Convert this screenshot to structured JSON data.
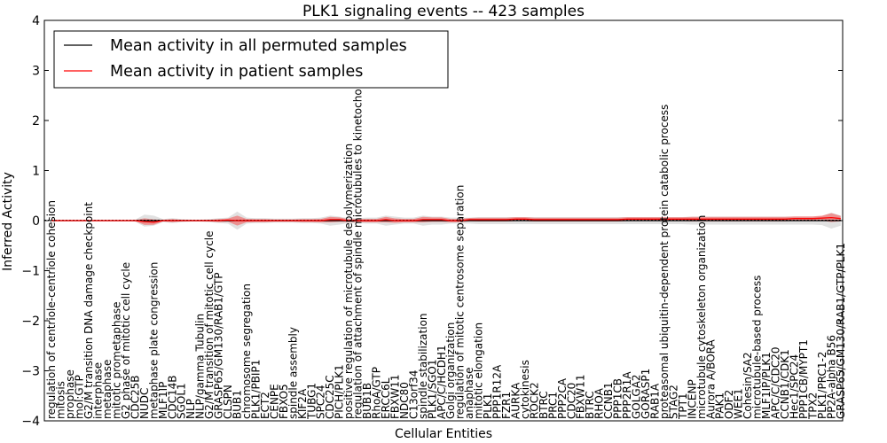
{
  "chart_data": {
    "type": "line",
    "title": "PLK1 signaling events -- 423 samples",
    "xlabel": "Cellular Entities",
    "ylabel": "Inferred Activity",
    "ylim": [
      -4,
      4
    ],
    "yticks": [
      -4,
      -3,
      -2,
      -1,
      0,
      1,
      2,
      3,
      4
    ],
    "ytick_labels": [
      "−4",
      "−3",
      "−2",
      "−1",
      "0",
      "1",
      "2",
      "3",
      "4"
    ],
    "legend_location": "upper-left",
    "categories": [
      "regulation of centriole-centriole cohesion",
      "mitosis",
      "prophase",
      "mol:GTP",
      "G2/M transition DNA damage checkpoint",
      "interphase",
      "metaphase",
      "mitotic prometaphase",
      "G2 phase of mitotic cell cycle",
      "CDC25B",
      "NUDC",
      "metaphase plate congression",
      "MLF1IP",
      "CDC14B",
      "SGOL1",
      "NLP",
      "NLP/gamma Tubulin",
      "G2/M transition of mitotic cell cycle",
      "GRASP65/GM130/RAB1/GTP",
      "CLSPN",
      "BUB1",
      "chromosome segregation",
      "PLK1/PBIP1",
      "ECT2",
      "CENPE",
      "FBXO5",
      "spindle assembly",
      "KIF2A",
      "TUBG1",
      "SPC24",
      "CDC25C",
      "PICH/PLK1",
      "positive regulation of microtubule depolymerization",
      "regulation of attachment of spindle microtubules to kinetochore",
      "BUB1B",
      "RhoA/GTP",
      "ERCC6L",
      "FBXW11",
      "NDC80",
      "C13orf34",
      "spindle stabilization",
      "PLK1/SGO1",
      "APC/C/HCDH1",
      "Golgi organization",
      "regulation of mitotic centrosome separation",
      "anaphase",
      "mitotic elongation",
      "PLK1",
      "PPP1R12A",
      "FZR1",
      "AURKA",
      "cytokinesis",
      "ROCK2",
      "BTRC",
      "PRC1",
      "PPP2CA",
      "CDC20",
      "FBXW11",
      "BTRC",
      "RHOA",
      "CCNB1",
      "PPP1CB",
      "PPP2R1A",
      "GOLGA2",
      "GORASP1",
      "RAB1A",
      "proteasomal ubiquitin-dependent protein catabolic process",
      "STAG2",
      "TPT1",
      "INCENP",
      "microtubule cytoskeleton organization",
      "Aurora A/BORA",
      "PAK1",
      "ODF2",
      "WEE1",
      "Cohesin/SA2",
      "microtubule-based process",
      "MLF1IP/PLK1",
      "APC/C/CDC20",
      "CCNB1/CDK1",
      "Hec1/SPC24",
      "PPP1CB/MYPT1",
      "TPX2",
      "PLK1/PRC1-2",
      "PP2A-alpha B56",
      "GRASP65/GM130/RAB1/GTP/PLK1"
    ],
    "series": [
      {
        "name": "Mean activity in all permuted samples",
        "color": "#000000",
        "values": [
          0,
          0,
          0,
          0,
          0,
          0,
          0,
          0,
          0,
          0,
          0,
          0,
          0,
          0,
          0,
          0,
          0,
          0,
          0,
          0,
          0,
          0,
          0,
          0,
          0,
          0,
          0,
          0,
          0,
          0,
          0,
          0,
          0,
          0,
          0,
          0,
          0,
          0,
          0,
          0,
          0,
          0,
          0,
          0,
          0,
          0,
          0,
          0,
          0,
          0,
          0,
          0,
          0,
          0,
          0,
          0,
          0,
          0,
          0,
          0,
          0,
          0,
          0,
          0,
          0,
          0,
          0,
          0,
          0,
          0,
          0,
          0,
          0,
          0,
          0,
          0,
          0,
          0,
          0,
          0,
          0,
          0,
          0,
          0,
          0,
          0
        ]
      },
      {
        "name": "Mean activity in patient samples",
        "color": "#ff0000",
        "values": [
          0,
          0,
          0,
          0,
          0,
          0,
          0,
          0,
          0,
          0,
          -0.02,
          -0.03,
          0,
          0,
          0,
          0,
          0,
          0,
          0,
          0.01,
          0,
          0,
          0,
          0,
          0,
          0,
          0,
          0,
          0,
          0,
          0.02,
          0.02,
          0,
          0,
          0,
          0,
          0.02,
          0,
          0,
          0,
          0.02,
          0.02,
          0.02,
          0,
          0,
          0.02,
          0.02,
          0.02,
          0.02,
          0.02,
          0.03,
          0.03,
          0.02,
          0.02,
          0.02,
          0.02,
          0.02,
          0.02,
          0.02,
          0.02,
          0.02,
          0.02,
          0.03,
          0.03,
          0.03,
          0.03,
          0.03,
          0.03,
          0.03,
          0.03,
          0.03,
          0.03,
          0.03,
          0.03,
          0.03,
          0.03,
          0.03,
          0.03,
          0.03,
          0.03,
          0.04,
          0.04,
          0.04,
          0.05,
          0.06,
          0.04
        ]
      }
    ],
    "band_width": [
      0.01,
      0.01,
      0.01,
      0.01,
      0.01,
      0.01,
      0.01,
      0.01,
      0.01,
      0.02,
      0.12,
      0.1,
      0.03,
      0.05,
      0.03,
      0.02,
      0.02,
      0.03,
      0.05,
      0.06,
      0.18,
      0.06,
      0.05,
      0.05,
      0.04,
      0.04,
      0.04,
      0.05,
      0.05,
      0.06,
      0.1,
      0.08,
      0.05,
      0.05,
      0.06,
      0.06,
      0.1,
      0.08,
      0.06,
      0.06,
      0.1,
      0.08,
      0.08,
      0.06,
      0.06,
      0.06,
      0.07,
      0.07,
      0.07,
      0.07,
      0.07,
      0.07,
      0.07,
      0.07,
      0.07,
      0.07,
      0.07,
      0.07,
      0.07,
      0.07,
      0.07,
      0.07,
      0.07,
      0.07,
      0.07,
      0.07,
      0.07,
      0.07,
      0.07,
      0.08,
      0.08,
      0.08,
      0.08,
      0.08,
      0.08,
      0.08,
      0.08,
      0.08,
      0.08,
      0.08,
      0.08,
      0.08,
      0.08,
      0.09,
      0.16,
      0.1
    ]
  }
}
